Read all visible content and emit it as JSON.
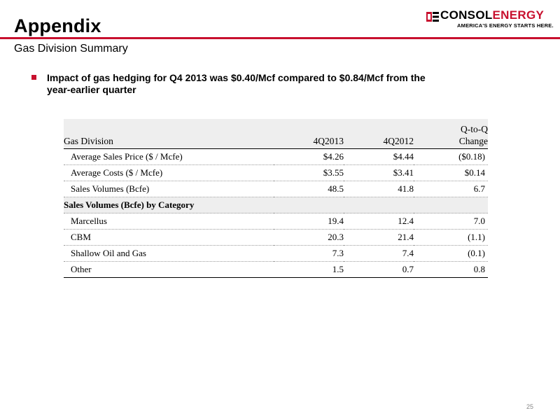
{
  "header": {
    "title": "Appendix",
    "subtitle": "Gas Division Summary",
    "logo_name_part1": "CONSOL",
    "logo_name_part2": "ENERGY",
    "logo_tagline": "AMERICA'S ENERGY STARTS HERE.",
    "accent_color": "#c8102e"
  },
  "bullet": {
    "text": "Impact of gas hedging for Q4 2013 was $0.40/Mcf compared to $0.84/Mcf from the year-earlier quarter"
  },
  "table": {
    "header": {
      "name": "Gas Division",
      "col1": "4Q2013",
      "col2": "4Q2012",
      "col3_line1": "Q-to-Q",
      "col3_line2": "Change"
    },
    "rows": [
      {
        "label": "Average Sales Price ($ / Mcfe)",
        "q4_2013": "$4.26",
        "q4_2012": "$4.44",
        "change": "($0.18)"
      },
      {
        "label": "Average Costs ($ / Mcfe)",
        "q4_2013": "$3.55",
        "q4_2012": "$3.41",
        "change": "$0.14"
      },
      {
        "label": "Sales Volumes (Bcfe)",
        "q4_2013": "48.5",
        "q4_2012": "41.8",
        "change": "6.7"
      }
    ],
    "section_title": "Sales Volumes (Bcfe) by Category",
    "category_rows": [
      {
        "label": "Marcellus",
        "q4_2013": "19.4",
        "q4_2012": "12.4",
        "change": "7.0"
      },
      {
        "label": "CBM",
        "q4_2013": "20.3",
        "q4_2012": "21.4",
        "change": "(1.1)"
      },
      {
        "label": "Shallow Oil and Gas",
        "q4_2013": "7.3",
        "q4_2012": "7.4",
        "change": "(0.1)"
      },
      {
        "label": "Other",
        "q4_2013": "1.5",
        "q4_2012": "0.7",
        "change": "0.8"
      }
    ]
  },
  "footer": {
    "page_number": "25"
  }
}
